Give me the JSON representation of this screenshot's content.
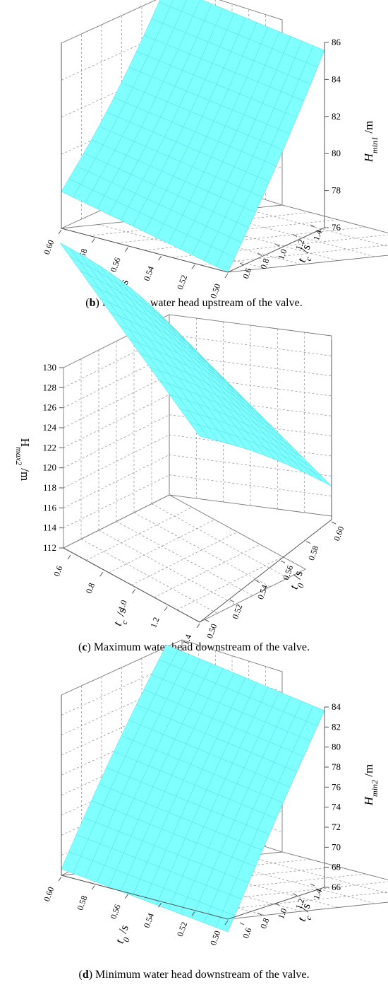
{
  "chart_data": [
    {
      "type": "surface",
      "panel": "b",
      "caption_letter": "b",
      "caption_text": " Minimum water head upstream of the valve.",
      "x_axis": {
        "label": "t₀ /s",
        "ticks": [
          "0.60",
          "0.58",
          "0.56",
          "0.54",
          "0.52",
          "0.50"
        ],
        "range": [
          0.5,
          0.6
        ]
      },
      "y_axis": {
        "label": "t_c /s",
        "ticks": [
          "0.6",
          "0.8",
          "1.0",
          "1.2",
          "1.4"
        ],
        "range": [
          0.6,
          1.4
        ]
      },
      "z_axis": {
        "label": "H_min1 /m",
        "ticks": [
          "76",
          "78",
          "80",
          "82",
          "84",
          "86"
        ],
        "range": [
          76,
          86
        ]
      },
      "corner_values": [
        {
          "t0": 0.6,
          "tc": 0.6,
          "H": 77.0
        },
        {
          "t0": 0.5,
          "tc": 0.6,
          "H": 76.0
        },
        {
          "t0": 0.5,
          "tc": 1.4,
          "H": 85.5
        },
        {
          "t0": 0.6,
          "tc": 1.4,
          "H": 85.5
        }
      ],
      "surface_color": "#80FFFF",
      "grid": true
    },
    {
      "type": "surface",
      "panel": "c",
      "caption_letter": "c",
      "caption_text": " Maximum water head downstream of the valve.",
      "x_axis": {
        "label": "t_c /s",
        "ticks": [
          "0.6",
          "0.8",
          "1.0",
          "1.2",
          "1.4"
        ],
        "range": [
          0.6,
          1.4
        ]
      },
      "y_axis": {
        "label": "t₀ /s",
        "ticks": [
          "0.50",
          "0.52",
          "0.54",
          "0.56",
          "0.58",
          "0.60"
        ],
        "range": [
          0.5,
          0.6
        ]
      },
      "z_axis": {
        "label": "H_max2 /m",
        "ticks": [
          "112",
          "114",
          "116",
          "118",
          "120",
          "122",
          "124",
          "126",
          "128",
          "130"
        ],
        "range": [
          112,
          130
        ]
      },
      "corner_values": [
        {
          "tc": 0.6,
          "t0": 0.5,
          "H": 128.0
        },
        {
          "tc": 0.6,
          "t0": 0.6,
          "H": 130.0
        },
        {
          "tc": 1.4,
          "t0": 0.6,
          "H": 115.0
        },
        {
          "tc": 1.4,
          "t0": 0.5,
          "H": 112.0
        }
      ],
      "surface_color": "#80FFFF",
      "grid": true
    },
    {
      "type": "surface",
      "panel": "d",
      "caption_letter": "d",
      "caption_text": " Minimum water head downstream of the valve.",
      "x_axis": {
        "label": "t₀ /s",
        "ticks": [
          "0.60",
          "0.58",
          "0.56",
          "0.54",
          "0.52",
          "0.50"
        ],
        "range": [
          0.5,
          0.6
        ]
      },
      "y_axis": {
        "label": "t_c /s",
        "ticks": [
          "0.6",
          "0.8",
          "1.0",
          "1.2",
          "1.4"
        ],
        "range": [
          0.6,
          1.4
        ]
      },
      "z_axis": {
        "label": "H_min2 /m",
        "ticks": [
          "66",
          "68",
          "70",
          "72",
          "74",
          "76",
          "78",
          "80",
          "82",
          "84"
        ],
        "range": [
          66,
          84
        ]
      },
      "corner_values": [
        {
          "t0": 0.6,
          "tc": 0.6,
          "H": 66.5
        },
        {
          "t0": 0.5,
          "tc": 0.6,
          "H": 66.0
        },
        {
          "t0": 0.5,
          "tc": 1.4,
          "H": 83.5
        },
        {
          "t0": 0.6,
          "tc": 1.4,
          "H": 83.5
        }
      ],
      "surface_color": "#80FFFF",
      "grid": true
    }
  ]
}
